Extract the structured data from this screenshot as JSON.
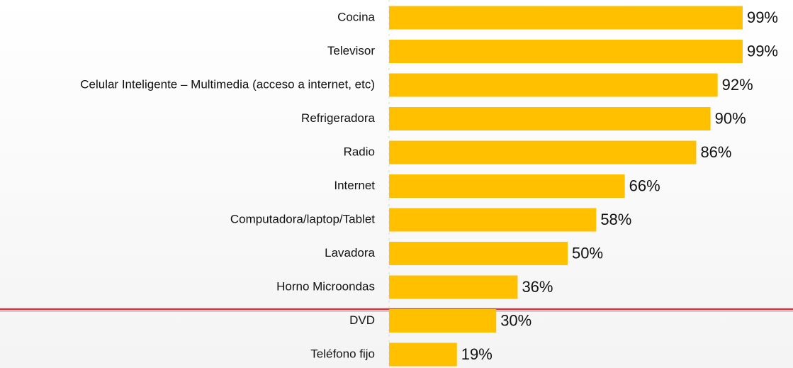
{
  "chart_data": {
    "type": "bar",
    "orientation": "horizontal",
    "categories": [
      "Cocina",
      "Televisor",
      "Celular Inteligente – Multimedia (acceso a internet, etc)",
      "Refrigeradora",
      "Radio",
      "Internet",
      "Computadora/laptop/Tablet",
      "Lavadora",
      "Horno Microondas",
      "DVD",
      "Teléfono fijo"
    ],
    "values": [
      99,
      99,
      92,
      90,
      86,
      66,
      58,
      50,
      36,
      30,
      19
    ],
    "value_labels": [
      "99%",
      "99%",
      "92%",
      "90%",
      "86%",
      "66%",
      "58%",
      "50%",
      "36%",
      "30%",
      "19%"
    ],
    "color": "#ffc000",
    "xlim": [
      0,
      100
    ]
  }
}
